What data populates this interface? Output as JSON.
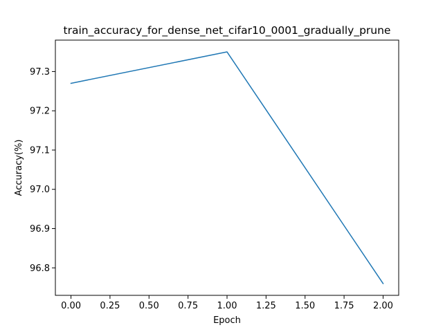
{
  "chart_data": {
    "type": "line",
    "title": "train_accuracy_for_dense_net_cifar10_0001_gradually_prune",
    "xlabel": "Epoch",
    "ylabel": "Accuracy(%)",
    "xlim": [
      -0.1,
      2.1
    ],
    "ylim": [
      96.73,
      97.38
    ],
    "xticks": [
      0.0,
      0.25,
      0.5,
      0.75,
      1.0,
      1.25,
      1.5,
      1.75,
      2.0
    ],
    "xtick_labels": [
      "0.00",
      "0.25",
      "0.50",
      "0.75",
      "1.00",
      "1.25",
      "1.50",
      "1.75",
      "2.00"
    ],
    "yticks": [
      96.8,
      96.9,
      97.0,
      97.1,
      97.2,
      97.3
    ],
    "ytick_labels": [
      "96.8",
      "96.9",
      "97.0",
      "97.1",
      "97.2",
      "97.3"
    ],
    "grid": false,
    "series": [
      {
        "x": [
          0,
          1,
          2
        ],
        "values": [
          97.27,
          97.35,
          96.76
        ],
        "color": "#1f77b4"
      }
    ]
  }
}
